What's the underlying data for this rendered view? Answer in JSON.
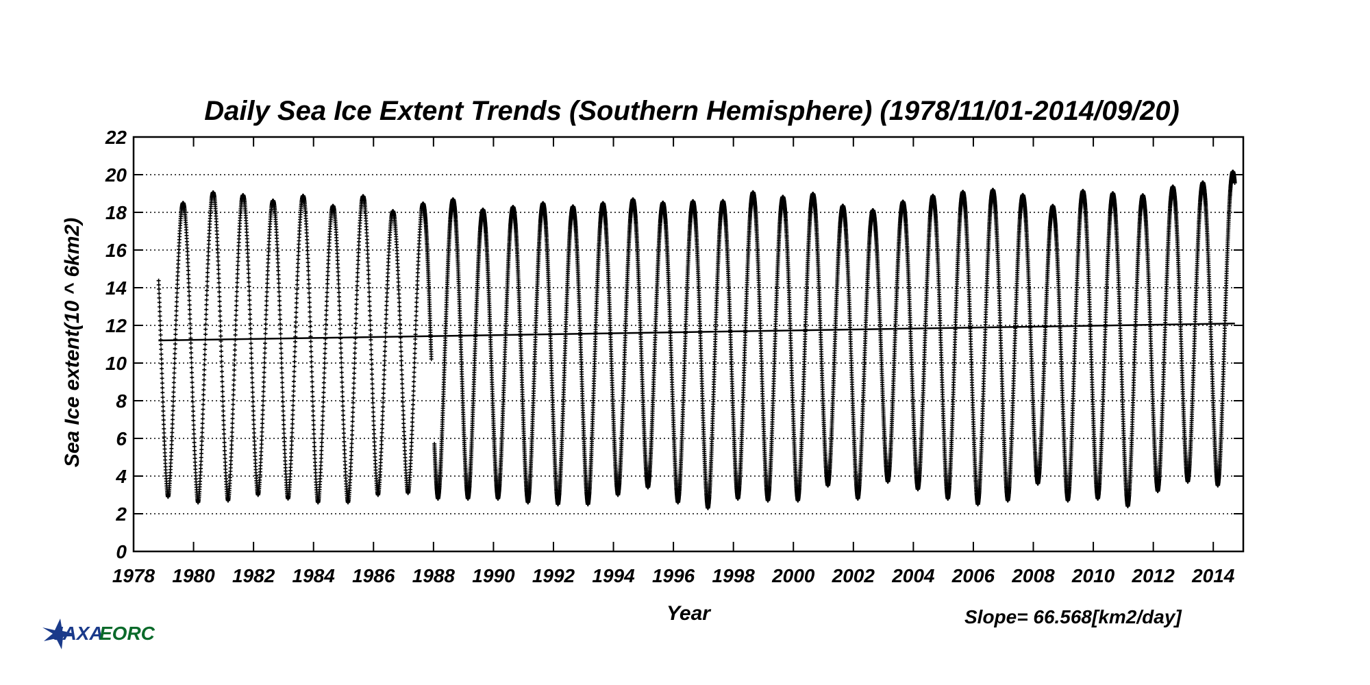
{
  "chart_data": {
    "type": "scatter",
    "title": "Daily Sea Ice Extent Trends (Southern Hemisphere) (1978/11/01-2014/09/20)",
    "xlabel": "Year",
    "ylabel": "Sea Ice extent(10 ^ 6km2)",
    "xlim": [
      1978,
      2015
    ],
    "ylim": [
      0,
      22
    ],
    "x_ticks": [
      "1978",
      "1980",
      "1982",
      "1984",
      "1986",
      "1988",
      "1990",
      "1992",
      "1994",
      "1996",
      "1998",
      "2000",
      "2002",
      "2004",
      "2006",
      "2008",
      "2010",
      "2012",
      "2014"
    ],
    "y_ticks": [
      "0",
      "2",
      "4",
      "6",
      "8",
      "10",
      "12",
      "14",
      "16",
      "18",
      "20",
      "22"
    ],
    "grid": "horizontal dotted",
    "slope_text": "Slope=  66.568[km2/day]",
    "date_range": [
      "1978-11-01",
      "2014-09-20"
    ],
    "annual_extremes": [
      {
        "year": 1979,
        "min": 2.9,
        "max": 18.5
      },
      {
        "year": 1980,
        "min": 2.6,
        "max": 19.1
      },
      {
        "year": 1981,
        "min": 2.7,
        "max": 18.9
      },
      {
        "year": 1982,
        "min": 3.0,
        "max": 18.6
      },
      {
        "year": 1983,
        "min": 2.8,
        "max": 18.9
      },
      {
        "year": 1984,
        "min": 2.6,
        "max": 18.3
      },
      {
        "year": 1985,
        "min": 2.6,
        "max": 18.9
      },
      {
        "year": 1986,
        "min": 3.0,
        "max": 18.0
      },
      {
        "year": 1987,
        "min": 3.1,
        "max": 18.5
      },
      {
        "year": 1988,
        "min": 2.8,
        "max": 18.7
      },
      {
        "year": 1989,
        "min": 2.8,
        "max": 18.1
      },
      {
        "year": 1990,
        "min": 2.8,
        "max": 18.3
      },
      {
        "year": 1991,
        "min": 2.6,
        "max": 18.5
      },
      {
        "year": 1992,
        "min": 2.5,
        "max": 18.3
      },
      {
        "year": 1993,
        "min": 2.5,
        "max": 18.5
      },
      {
        "year": 1994,
        "min": 3.0,
        "max": 18.7
      },
      {
        "year": 1995,
        "min": 3.4,
        "max": 18.5
      },
      {
        "year": 1996,
        "min": 2.6,
        "max": 18.6
      },
      {
        "year": 1997,
        "min": 2.3,
        "max": 18.6
      },
      {
        "year": 1998,
        "min": 2.8,
        "max": 19.1
      },
      {
        "year": 1999,
        "min": 2.7,
        "max": 18.8
      },
      {
        "year": 2000,
        "min": 2.7,
        "max": 19.0
      },
      {
        "year": 2001,
        "min": 3.5,
        "max": 18.3
      },
      {
        "year": 2002,
        "min": 2.8,
        "max": 18.1
      },
      {
        "year": 2003,
        "min": 3.7,
        "max": 18.6
      },
      {
        "year": 2004,
        "min": 3.3,
        "max": 18.9
      },
      {
        "year": 2005,
        "min": 2.8,
        "max": 19.1
      },
      {
        "year": 2006,
        "min": 2.5,
        "max": 19.2
      },
      {
        "year": 2007,
        "min": 2.7,
        "max": 18.9
      },
      {
        "year": 2008,
        "min": 3.6,
        "max": 18.3
      },
      {
        "year": 2009,
        "min": 2.7,
        "max": 19.2
      },
      {
        "year": 2010,
        "min": 2.8,
        "max": 19.0
      },
      {
        "year": 2011,
        "min": 2.4,
        "max": 18.9
      },
      {
        "year": 2012,
        "min": 3.2,
        "max": 19.4
      },
      {
        "year": 2013,
        "min": 3.7,
        "max": 19.6
      },
      {
        "year": 2014,
        "min": 3.5,
        "max": 20.2
      }
    ],
    "series": [
      {
        "type": "scatter",
        "marker": "asterisk",
        "color": "#000000"
      },
      {
        "type": "trend-line",
        "x": [
          1978.83,
          2014.72
        ],
        "y": [
          11.2,
          12.1
        ],
        "color": "#000000"
      }
    ]
  },
  "logo": {
    "mark_text": "JAXA",
    "text": "EORC",
    "color": "#1a3a8a",
    "text_color": "#0a6a2a"
  }
}
